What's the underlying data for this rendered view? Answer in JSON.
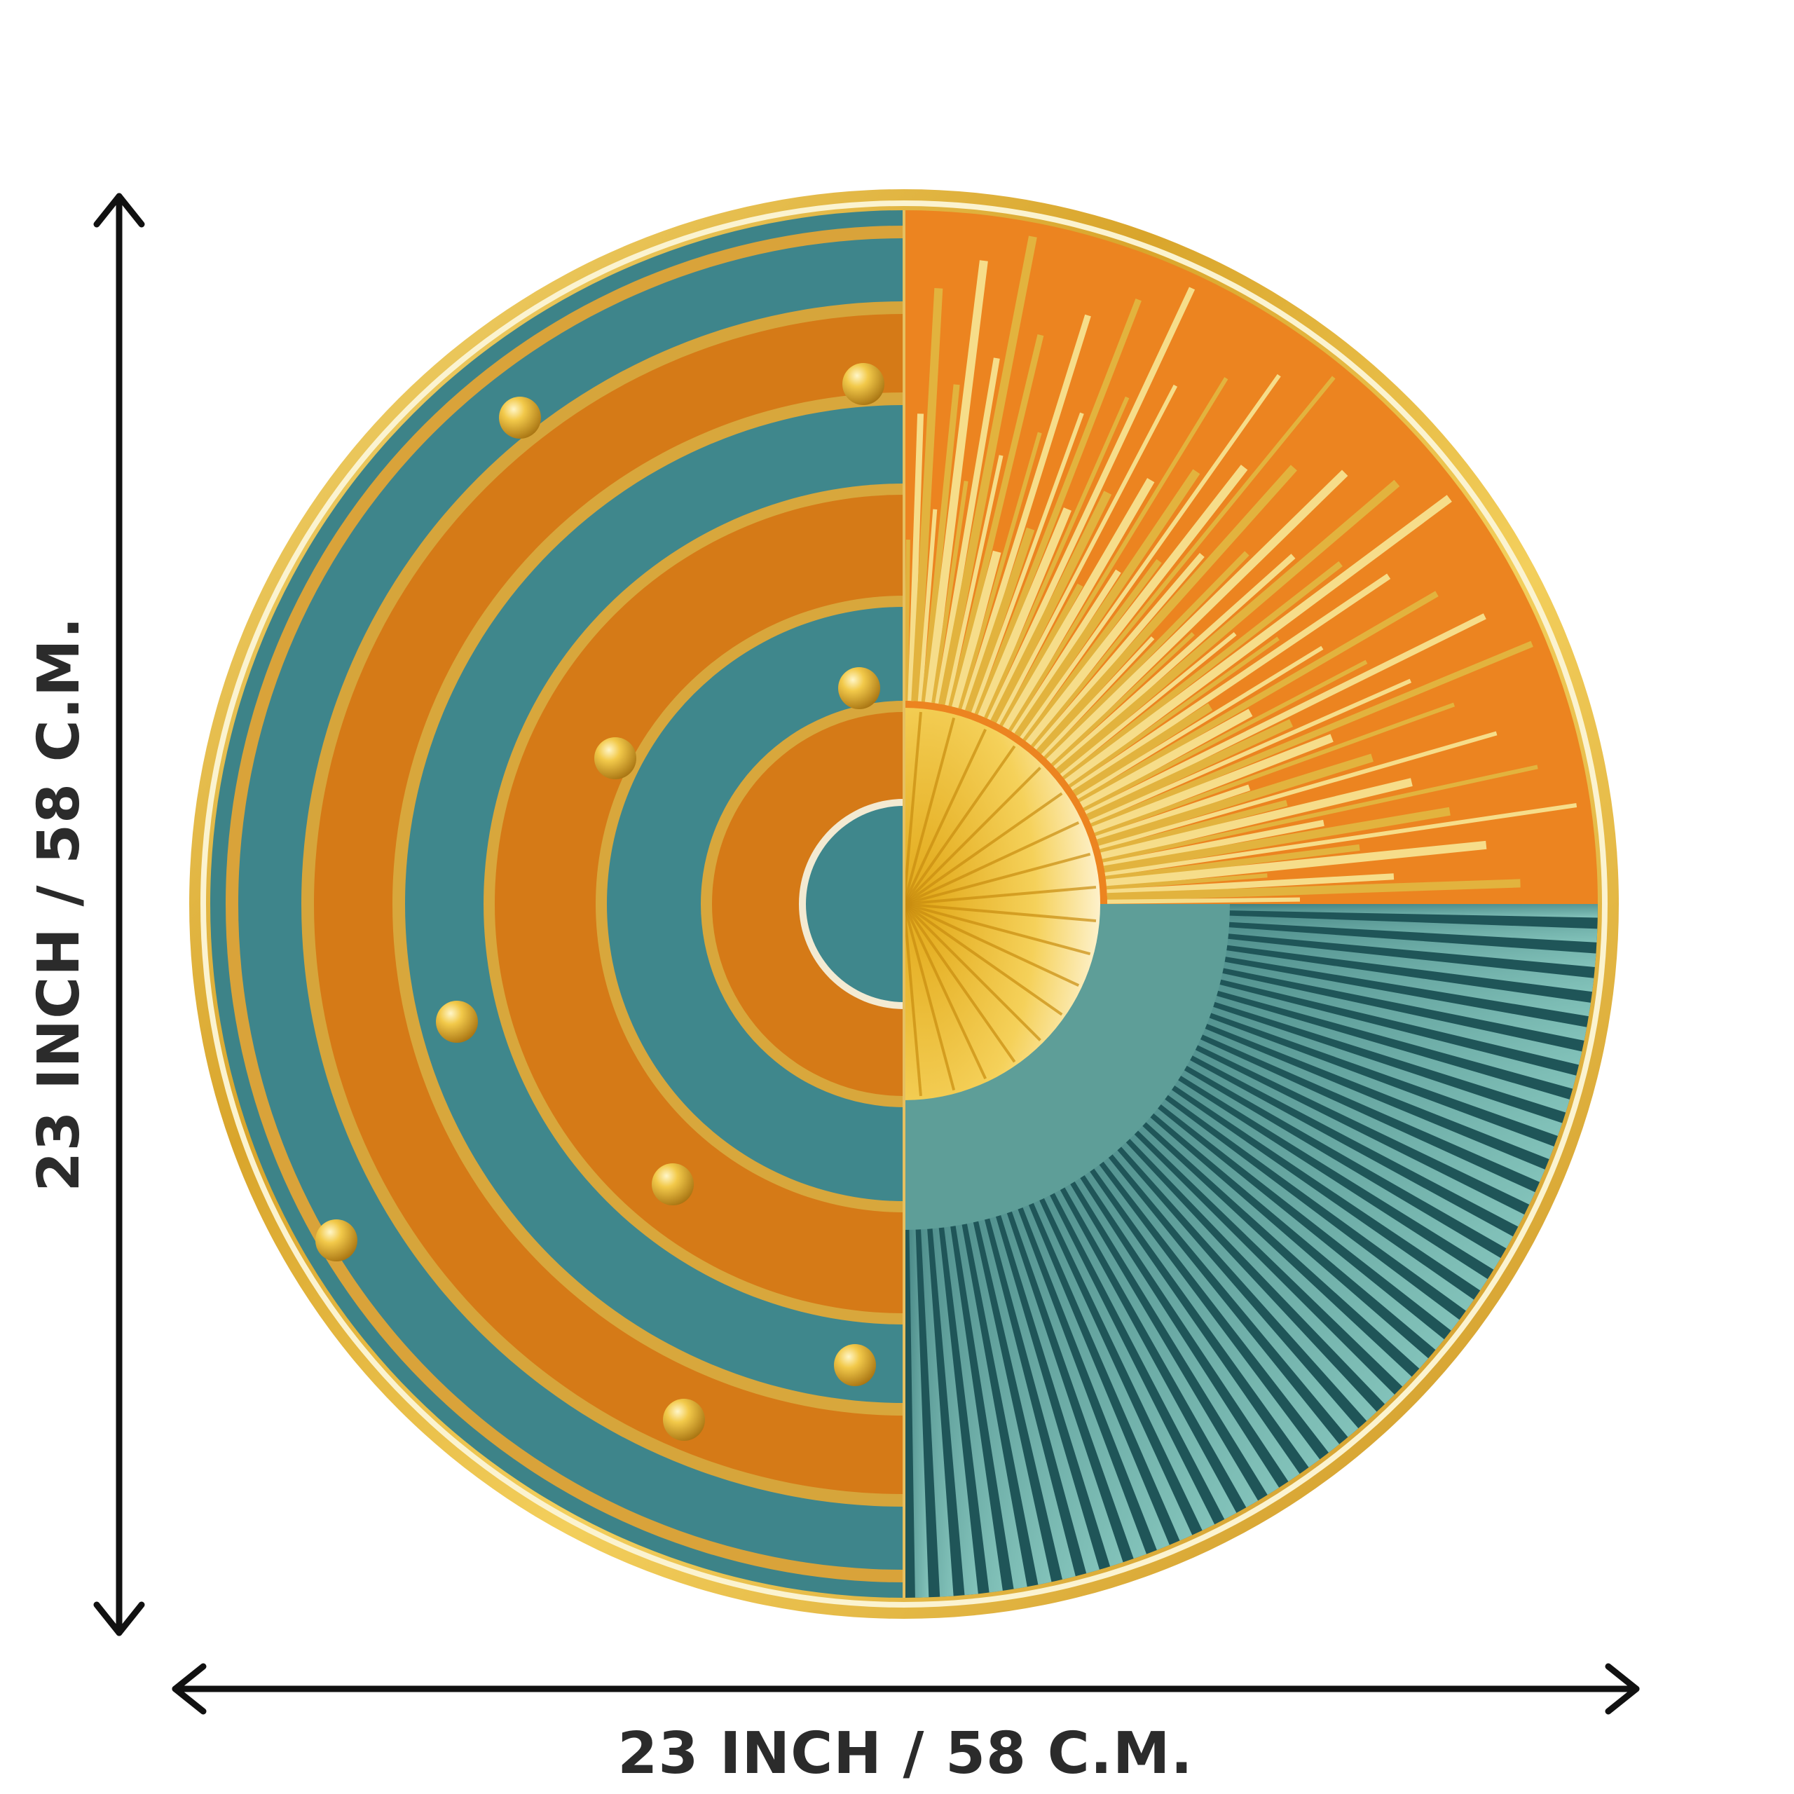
{
  "product": {
    "name": "decorative-round-wall-art",
    "colors": {
      "gold": "#e0b23c",
      "gold_light": "#f6e08e",
      "teal": "#3f8a90",
      "teal_dark": "#1f5457",
      "teal_light": "#7fbcb6",
      "orange": "#de7f1f",
      "orange_light": "#f08a2a"
    }
  },
  "dimensions": {
    "width_label": "23 INCH / 58 C.M.",
    "height_label": "23 INCH / 58 C.M.",
    "arrow_color": "#111111",
    "text_color": "#2b2b2b"
  }
}
